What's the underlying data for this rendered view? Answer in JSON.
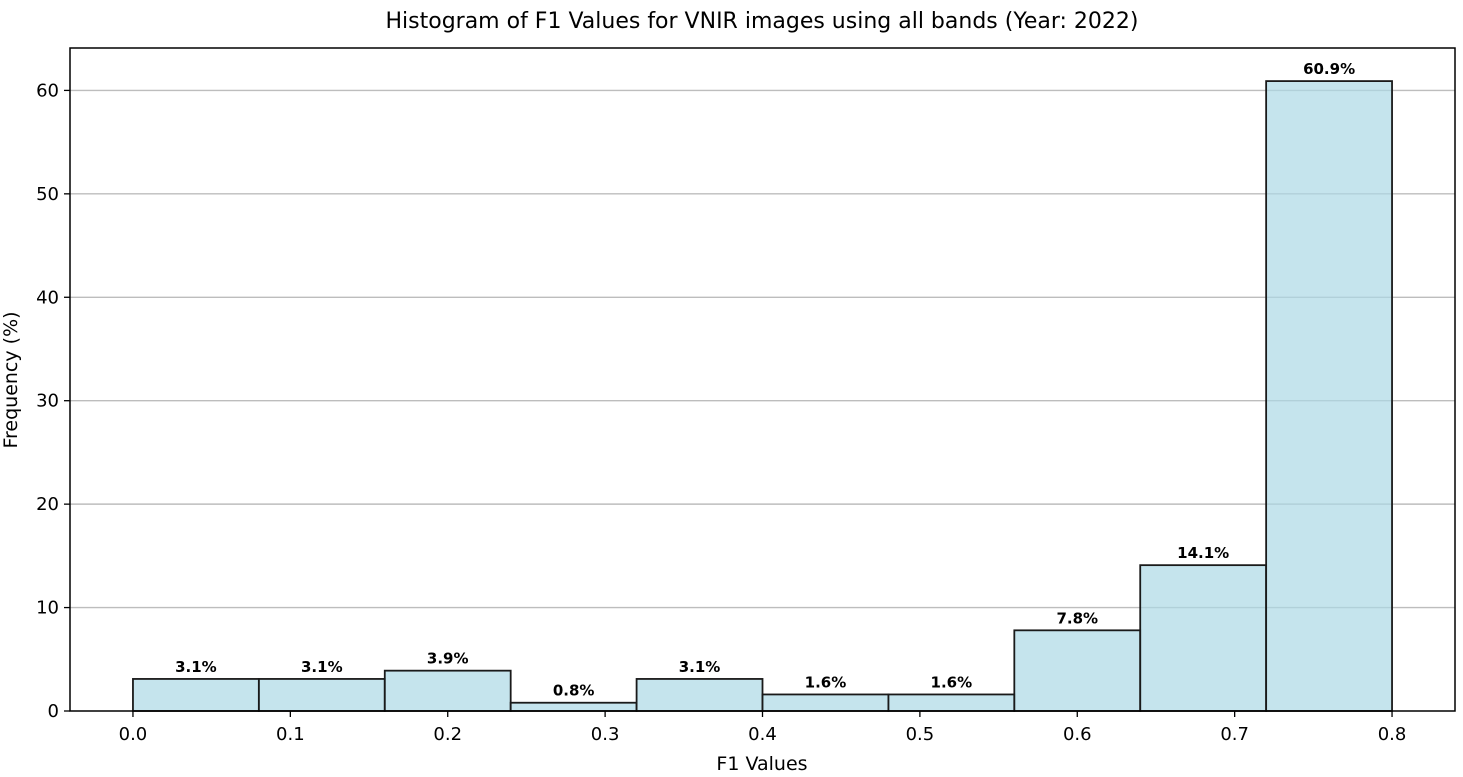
{
  "chart_data": {
    "type": "bar",
    "title": "Histogram of F1 Values for VNIR images using all bands (Year: 2022)",
    "xlabel": "F1 Values",
    "ylabel": "Frequency (%)",
    "bins": [
      {
        "start": 0.0,
        "end": 0.08,
        "value": 3.1,
        "label": "3.1%"
      },
      {
        "start": 0.08,
        "end": 0.16,
        "value": 3.1,
        "label": "3.1%"
      },
      {
        "start": 0.16,
        "end": 0.24,
        "value": 3.9,
        "label": "3.9%"
      },
      {
        "start": 0.24,
        "end": 0.32,
        "value": 0.8,
        "label": "0.8%"
      },
      {
        "start": 0.32,
        "end": 0.4,
        "value": 3.1,
        "label": "3.1%"
      },
      {
        "start": 0.4,
        "end": 0.48,
        "value": 1.6,
        "label": "1.6%"
      },
      {
        "start": 0.48,
        "end": 0.56,
        "value": 1.6,
        "label": "1.6%"
      },
      {
        "start": 0.56,
        "end": 0.64,
        "value": 7.8,
        "label": "7.8%"
      },
      {
        "start": 0.64,
        "end": 0.72,
        "value": 14.1,
        "label": "14.1%"
      },
      {
        "start": 0.72,
        "end": 0.8,
        "value": 60.9,
        "label": "60.9%"
      }
    ],
    "xlim": [
      -0.04,
      0.84
    ],
    "ylim": [
      0,
      64.1
    ],
    "xticks": [
      0.0,
      0.1,
      0.2,
      0.3,
      0.4,
      0.5,
      0.6,
      0.7,
      0.8
    ],
    "xtick_labels": [
      "0.0",
      "0.1",
      "0.2",
      "0.3",
      "0.4",
      "0.5",
      "0.6",
      "0.7",
      "0.8"
    ],
    "yticks": [
      0,
      10,
      20,
      30,
      40,
      50,
      60
    ],
    "ytick_labels": [
      "0",
      "10",
      "20",
      "30",
      "40",
      "50",
      "60"
    ],
    "grid": "y",
    "bar_color": "#add8e6",
    "edge_color": "#1a1a1a"
  }
}
